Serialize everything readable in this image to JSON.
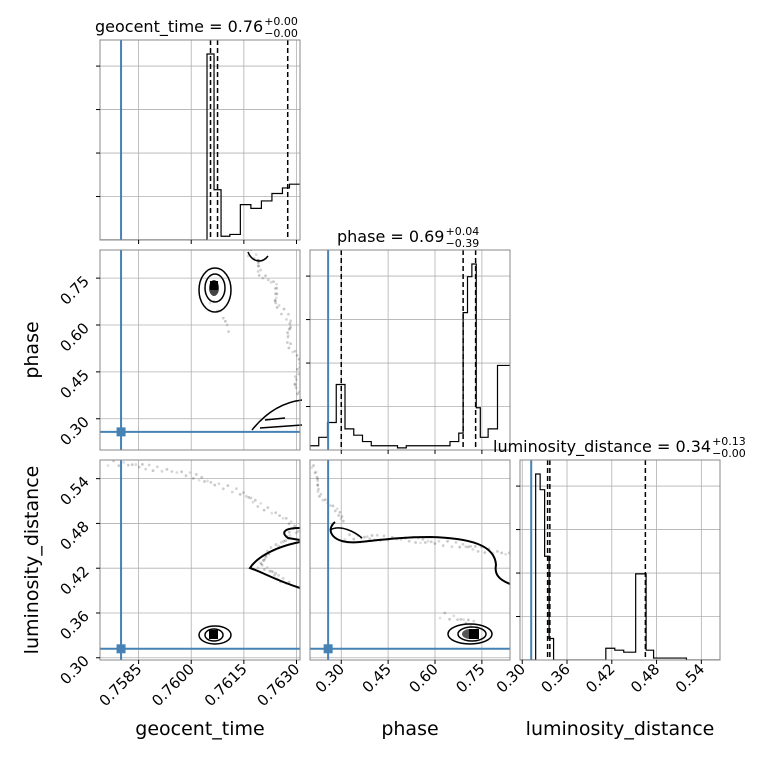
{
  "chart_data": {
    "type": "corner",
    "parameters": [
      "geocent_time",
      "phase",
      "luminosity_distance"
    ],
    "axis_labels": {
      "x": [
        "geocent_time",
        "phase",
        "luminosity_distance"
      ],
      "y": [
        "phase",
        "luminosity_distance"
      ]
    },
    "ranges": {
      "geocent_time": [
        0.7574,
        0.7631
      ],
      "phase": [
        0.2,
        0.84
      ],
      "luminosity_distance": [
        0.297,
        0.565
      ]
    },
    "ticks": {
      "geocent_time": [
        "0.7585",
        "0.7600",
        "0.7615",
        "0.7630"
      ],
      "phase": [
        "0.30",
        "0.45",
        "0.60",
        "0.75"
      ],
      "luminosity_distance": [
        "0.30",
        "0.36",
        "0.42",
        "0.48",
        "0.54"
      ]
    },
    "tick_values": {
      "geocent_time": [
        0.7585,
        0.76,
        0.7615,
        0.763
      ],
      "phase": [
        0.3,
        0.45,
        0.6,
        0.75
      ],
      "luminosity_distance": [
        0.3,
        0.36,
        0.42,
        0.48,
        0.54
      ]
    },
    "truths": {
      "geocent_time": 0.758,
      "phase": 0.258,
      "luminosity_distance": 0.312
    },
    "truth_color": "#4682b4",
    "titles": [
      {
        "param": "geocent_time",
        "label": "geocent_time = 0.76",
        "upper": "+0.00",
        "lower": "−0.00"
      },
      {
        "param": "phase",
        "label": "phase = 0.69",
        "upper": "+0.04",
        "lower": "−0.39"
      },
      {
        "param": "luminosity_distance",
        "label": "luminosity_distance = 0.34",
        "upper": "+0.13",
        "lower": "−0.00"
      }
    ],
    "histograms": {
      "geocent_time": {
        "edges": [
          0.7574,
          0.758,
          0.7586,
          0.7592,
          0.7598,
          0.76045,
          0.76065,
          0.76085,
          0.7611,
          0.7614,
          0.7617,
          0.762,
          0.7623,
          0.7626,
          0.7628,
          0.7631
        ],
        "counts": [
          0,
          0,
          0,
          0,
          0,
          1.0,
          0.27,
          0.02,
          0.03,
          0.19,
          0.17,
          0.21,
          0.25,
          0.28,
          0.3
        ],
        "quantiles": [
          0.76055,
          0.76075,
          0.76275
        ]
      },
      "phase": {
        "edges": [
          0.2,
          0.228,
          0.256,
          0.284,
          0.312,
          0.34,
          0.368,
          0.396,
          0.424,
          0.452,
          0.48,
          0.508,
          0.536,
          0.564,
          0.592,
          0.62,
          0.648,
          0.676,
          0.69,
          0.704,
          0.718,
          0.732,
          0.745,
          0.77,
          0.8,
          0.84
        ],
        "counts": [
          0.02,
          0.06,
          0.13,
          0.31,
          0.1,
          0.07,
          0.04,
          0.02,
          0.02,
          0.02,
          0.01,
          0.02,
          0.02,
          0.02,
          0.02,
          0.02,
          0.04,
          0.08,
          0.65,
          0.82,
          0.88,
          0.2,
          0.06,
          0.1,
          0.4
        ],
        "quantiles": [
          0.3,
          0.69,
          0.73
        ]
      },
      "luminosity_distance": {
        "edges": [
          0.297,
          0.312,
          0.318,
          0.324,
          0.33,
          0.336,
          0.342,
          0.348,
          0.354,
          0.36,
          0.37,
          0.38,
          0.4,
          0.412,
          0.424,
          0.436,
          0.446,
          0.452,
          0.458,
          0.466,
          0.476,
          0.496,
          0.52,
          0.565
        ],
        "counts": [
          0,
          0,
          0.95,
          0.87,
          0.53,
          0.11,
          0.0,
          0.0,
          0.0,
          0.0,
          0.0,
          0.0,
          0.0,
          0.06,
          0.05,
          0.04,
          0.04,
          0.44,
          0.44,
          0.05,
          0.01,
          0.01,
          0.0
        ],
        "quantiles": [
          0.334,
          0.337,
          0.465
        ]
      }
    },
    "grid": true
  }
}
